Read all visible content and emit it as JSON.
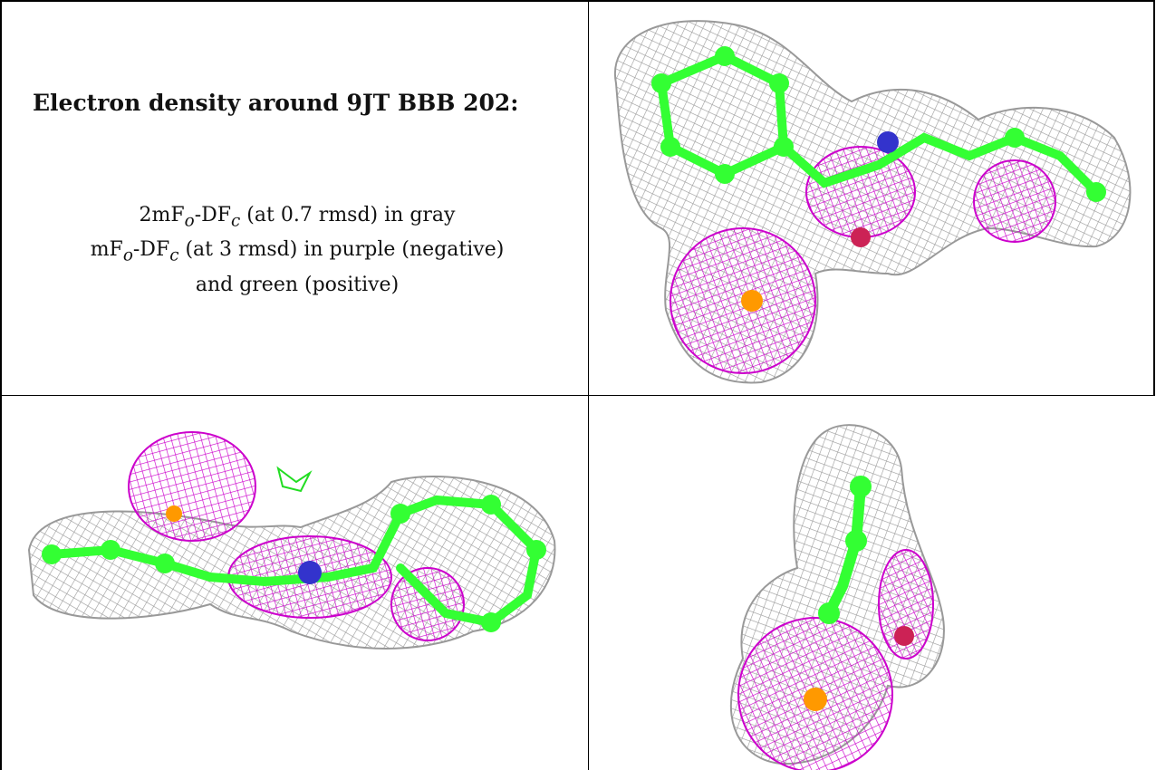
{
  "figure": {
    "title": "Electron density around 9JT BBB 202:",
    "legend": {
      "line1": {
        "prefix": "2mF",
        "sub_o": "o",
        "mid": "-DF",
        "sub_c": "c",
        "suffix": " (at 0.7 rmsd) in gray"
      },
      "line2": {
        "prefix": "mF",
        "sub_o": "o",
        "mid": "-DF",
        "sub_c": "c",
        "suffix": " (at 3 rmsd) in purple (negative)"
      },
      "line3": "and green (positive)"
    },
    "colors": {
      "mesh_2fo": "#9a9a9a",
      "diff_negative": "#cc00cc",
      "diff_positive": "#22dd22",
      "carbon": "#33ff33",
      "nitrogen": "#3333cc",
      "oxygen": "#cc2255",
      "sulfur_like": "#ff9900"
    },
    "panels": [
      "view-top-right",
      "view-bottom-left",
      "view-bottom-right"
    ]
  }
}
